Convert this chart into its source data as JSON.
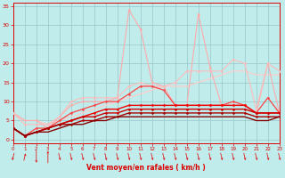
{
  "xlabel": "Vent moyen/en rafales ( km/h )",
  "xlim": [
    0,
    23
  ],
  "ylim": [
    -1,
    36
  ],
  "yticks": [
    0,
    5,
    10,
    15,
    20,
    25,
    30,
    35
  ],
  "xticks": [
    0,
    1,
    2,
    3,
    4,
    5,
    6,
    7,
    8,
    9,
    10,
    11,
    12,
    13,
    14,
    15,
    16,
    17,
    18,
    19,
    20,
    21,
    22,
    23
  ],
  "bg_color": "#c0ecec",
  "grid_color": "#98c8c8",
  "lines": [
    {
      "x": [
        0,
        1,
        2,
        3,
        4,
        5,
        6,
        7,
        8,
        9,
        10,
        11,
        12,
        13,
        14,
        15,
        16,
        17,
        18,
        19,
        20,
        21,
        22,
        23
      ],
      "y": [
        7,
        5,
        5,
        3,
        6,
        9,
        10,
        10,
        10,
        11,
        34,
        29,
        15,
        14,
        9,
        9,
        33,
        19,
        9,
        9,
        9,
        7,
        20,
        7
      ],
      "color": "#ffaaaa",
      "lw": 0.8,
      "marker": "D",
      "ms": 1.5,
      "zorder": 3
    },
    {
      "x": [
        0,
        1,
        2,
        3,
        4,
        5,
        6,
        7,
        8,
        9,
        10,
        11,
        12,
        13,
        14,
        15,
        16,
        17,
        18,
        19,
        20,
        21,
        22,
        23
      ],
      "y": [
        7,
        4,
        4,
        4,
        6,
        10,
        11,
        11,
        11,
        11,
        14,
        15,
        14,
        14,
        15,
        18,
        18,
        18,
        18,
        21,
        20,
        8,
        20,
        18
      ],
      "color": "#ffbbbb",
      "lw": 0.8,
      "marker": "D",
      "ms": 1.5,
      "zorder": 3
    },
    {
      "x": [
        0,
        1,
        2,
        3,
        4,
        5,
        6,
        7,
        8,
        9,
        10,
        11,
        12,
        13,
        14,
        15,
        16,
        17,
        18,
        19,
        20,
        21,
        22,
        23
      ],
      "y": [
        7,
        5,
        5,
        4,
        5,
        6,
        7,
        8,
        9,
        10,
        11,
        12,
        13,
        14,
        14,
        14,
        15,
        16,
        17,
        18,
        18,
        17,
        17,
        17
      ],
      "color": "#ffcccc",
      "lw": 0.9,
      "marker": null,
      "ms": 1.5,
      "zorder": 2
    },
    {
      "x": [
        0,
        1,
        2,
        3,
        4,
        5,
        6,
        7,
        8,
        9,
        10,
        11,
        12,
        13,
        14,
        15,
        16,
        17,
        18,
        19,
        20,
        21,
        22,
        23
      ],
      "y": [
        3,
        1,
        3,
        3,
        5,
        7,
        8,
        9,
        10,
        10,
        12,
        14,
        14,
        13,
        9,
        9,
        9,
        9,
        9,
        10,
        9,
        7,
        11,
        7
      ],
      "color": "#ff4444",
      "lw": 0.9,
      "marker": "D",
      "ms": 1.5,
      "zorder": 4
    },
    {
      "x": [
        0,
        1,
        2,
        3,
        4,
        5,
        6,
        7,
        8,
        9,
        10,
        11,
        12,
        13,
        14,
        15,
        16,
        17,
        18,
        19,
        20,
        21,
        22,
        23
      ],
      "y": [
        3,
        1,
        2,
        3,
        4,
        5,
        6,
        7,
        8,
        8,
        9,
        9,
        9,
        9,
        9,
        9,
        9,
        9,
        9,
        9,
        9,
        7,
        7,
        7
      ],
      "color": "#ee0000",
      "lw": 1.0,
      "marker": "D",
      "ms": 1.5,
      "zorder": 4
    },
    {
      "x": [
        0,
        1,
        2,
        3,
        4,
        5,
        6,
        7,
        8,
        9,
        10,
        11,
        12,
        13,
        14,
        15,
        16,
        17,
        18,
        19,
        20,
        21,
        22,
        23
      ],
      "y": [
        3,
        1,
        2,
        3,
        4,
        5,
        6,
        6,
        7,
        7,
        8,
        8,
        8,
        8,
        8,
        8,
        8,
        8,
        8,
        8,
        8,
        7,
        7,
        7
      ],
      "color": "#cc0000",
      "lw": 1.0,
      "marker": "D",
      "ms": 1.5,
      "zorder": 4
    },
    {
      "x": [
        0,
        1,
        2,
        3,
        4,
        5,
        6,
        7,
        8,
        9,
        10,
        11,
        12,
        13,
        14,
        15,
        16,
        17,
        18,
        19,
        20,
        21,
        22,
        23
      ],
      "y": [
        3,
        1,
        2,
        3,
        4,
        4,
        5,
        5,
        6,
        6,
        7,
        7,
        7,
        7,
        7,
        7,
        7,
        7,
        7,
        7,
        7,
        6,
        6,
        6
      ],
      "color": "#aa0000",
      "lw": 1.0,
      "marker": "D",
      "ms": 1.5,
      "zorder": 4
    },
    {
      "x": [
        0,
        1,
        2,
        3,
        4,
        5,
        6,
        7,
        8,
        9,
        10,
        11,
        12,
        13,
        14,
        15,
        16,
        17,
        18,
        19,
        20,
        21,
        22,
        23
      ],
      "y": [
        3,
        1,
        2,
        2,
        3,
        4,
        4,
        5,
        5,
        6,
        6,
        6,
        6,
        6,
        6,
        6,
        6,
        6,
        6,
        6,
        6,
        5,
        5,
        6
      ],
      "color": "#880000",
      "lw": 1.0,
      "marker": null,
      "ms": 1.5,
      "zorder": 4
    }
  ],
  "arrow_color": "#dd2222",
  "arrow_angles": [
    225,
    45,
    270,
    90,
    315,
    315,
    315,
    315,
    315,
    315,
    315,
    315,
    315,
    315,
    315,
    315,
    315,
    315,
    315,
    315,
    315,
    315,
    315,
    315
  ]
}
